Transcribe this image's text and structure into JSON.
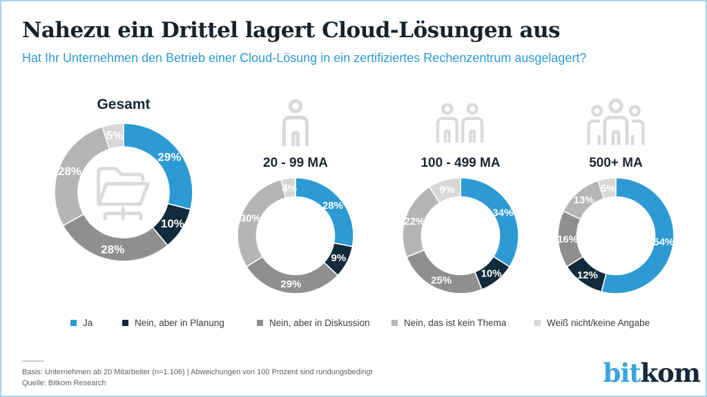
{
  "header": {
    "title": "Nahezu ein Drittel lagert Cloud-Lösungen aus",
    "subtitle": "Hat Ihr Unternehmen den Betrieb einer Cloud-Lösung in ein zertifiziertes Rechenzentrum ausgelagert?"
  },
  "chart_data": {
    "type": "pie",
    "variant": "donut-small-multiples",
    "unit": "%",
    "direction": "clockwise",
    "start_angle_deg": 0,
    "legend_position": "bottom",
    "categories": [
      "Ja",
      "Nein, aber in Planung",
      "Nein, aber in Diskussion",
      "Nein, das ist kein Thema",
      "Weiß nicht/keine Angabe"
    ],
    "colors": [
      "#2d9ad3",
      "#112b3a",
      "#8f8f8f",
      "#b5b5b5",
      "#d7d7d7"
    ],
    "groups": [
      {
        "label": "Gesamt",
        "icon": "folder-network-icon",
        "values": [
          29,
          10,
          28,
          28,
          5
        ]
      },
      {
        "label": "20 - 99 MA",
        "icon": "one-person-icon",
        "values": [
          28,
          9,
          29,
          30,
          4
        ]
      },
      {
        "label": "100 - 499 MA",
        "icon": "two-persons-icon",
        "values": [
          34,
          10,
          25,
          22,
          9
        ]
      },
      {
        "label": "500+ MA",
        "icon": "three-persons-icon",
        "values": [
          54,
          12,
          16,
          13,
          5
        ]
      }
    ]
  },
  "footer": {
    "basis": "Basis: Unternehmen ab 20 Mitarbeiter (n=1.106) | Abweichungen von 100 Prozent sind rundungsbedingt",
    "source": "Quelle: Bitkom Research"
  },
  "logo": {
    "bit": "bit",
    "kom": "kom"
  }
}
